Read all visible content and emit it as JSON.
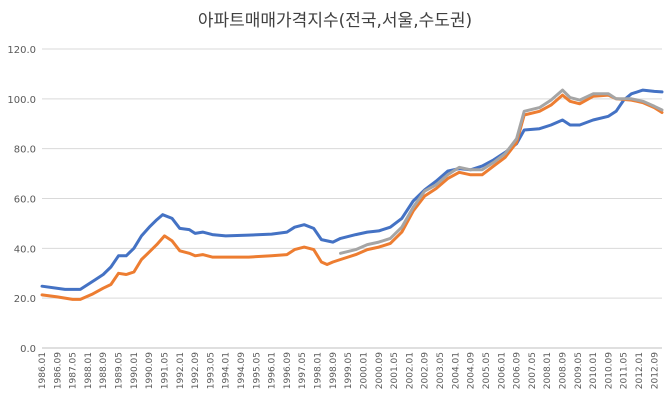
{
  "chart_data": {
    "type": "line",
    "title": "아파트매매가격지수(전국,서울,수도권)",
    "xlabel": "",
    "ylabel": "",
    "ylim": [
      0,
      120
    ],
    "yticks": [
      "0.0",
      "20.0",
      "40.0",
      "60.0",
      "80.0",
      "100.0",
      "120.0"
    ],
    "grid": "horizontal",
    "legend": "none",
    "x_ticks": [
      "1986.01",
      "1986.09",
      "1987.05",
      "1988.01",
      "1988.09",
      "1989.05",
      "1990.01",
      "1990.09",
      "1991.05",
      "1992.01",
      "1992.09",
      "1993.05",
      "1994.01",
      "1994.09",
      "1995.05",
      "1996.01",
      "1996.09",
      "1997.05",
      "1998.01",
      "1998.09",
      "1999.05",
      "2000.01",
      "2000.09",
      "2001.05",
      "2002.01",
      "2002.09",
      "2003.05",
      "2004.01",
      "2004.09",
      "2005.05",
      "2006.01",
      "2006.09",
      "2007.05",
      "2008.01",
      "2008.09",
      "2009.05",
      "2010.01",
      "2010.09",
      "2011.05",
      "2012.01",
      "2012.09"
    ],
    "x_start": "1986.01",
    "x_end": "2013.01",
    "series": [
      {
        "color": "#4472C4",
        "points": [
          [
            "1986.01",
            24.8
          ],
          [
            "1987.01",
            23.5
          ],
          [
            "1987.09",
            23.5
          ],
          [
            "1988.05",
            27.5
          ],
          [
            "1988.09",
            29.5
          ],
          [
            "1989.01",
            32.5
          ],
          [
            "1989.05",
            37.0
          ],
          [
            "1989.09",
            37.0
          ],
          [
            "1990.01",
            40.0
          ],
          [
            "1990.05",
            45.0
          ],
          [
            "1990.09",
            48.5
          ],
          [
            "1991.01",
            51.5
          ],
          [
            "1991.04",
            53.5
          ],
          [
            "1991.09",
            52.0
          ],
          [
            "1992.01",
            48.0
          ],
          [
            "1992.06",
            47.5
          ],
          [
            "1992.09",
            46.0
          ],
          [
            "1993.01",
            46.5
          ],
          [
            "1993.06",
            45.5
          ],
          [
            "1994.01",
            45.0
          ],
          [
            "1995.01",
            45.3
          ],
          [
            "1996.01",
            45.7
          ],
          [
            "1996.09",
            46.5
          ],
          [
            "1997.01",
            48.5
          ],
          [
            "1997.06",
            49.5
          ],
          [
            "1997.11",
            48.0
          ],
          [
            "1998.03",
            43.5
          ],
          [
            "1998.09",
            42.5
          ],
          [
            "1999.01",
            44.0
          ],
          [
            "1999.09",
            45.5
          ],
          [
            "2000.03",
            46.5
          ],
          [
            "2000.09",
            47.0
          ],
          [
            "2001.03",
            48.5
          ],
          [
            "2001.09",
            52.0
          ],
          [
            "2002.03",
            59.0
          ],
          [
            "2002.09",
            63.5
          ],
          [
            "2003.03",
            67.0
          ],
          [
            "2003.09",
            71.0
          ],
          [
            "2004.03",
            72.0
          ],
          [
            "2004.09",
            71.5
          ],
          [
            "2005.03",
            73.0
          ],
          [
            "2005.09",
            75.5
          ],
          [
            "2006.03",
            78.5
          ],
          [
            "2006.09",
            82.0
          ],
          [
            "2007.01",
            87.5
          ],
          [
            "2007.09",
            88.0
          ],
          [
            "2008.03",
            89.5
          ],
          [
            "2008.09",
            91.5
          ],
          [
            "2009.01",
            89.5
          ],
          [
            "2009.06",
            89.5
          ],
          [
            "2010.01",
            91.5
          ],
          [
            "2010.09",
            93.0
          ],
          [
            "2011.01",
            95.0
          ],
          [
            "2011.05",
            99.5
          ],
          [
            "2011.09",
            102.0
          ],
          [
            "2012.03",
            103.5
          ],
          [
            "2012.09",
            103.0
          ],
          [
            "2013.01",
            102.8
          ]
        ]
      },
      {
        "color": "#ED7D31",
        "points": [
          [
            "1986.01",
            21.3
          ],
          [
            "1986.09",
            20.5
          ],
          [
            "1987.05",
            19.5
          ],
          [
            "1987.09",
            19.5
          ],
          [
            "1988.03",
            21.5
          ],
          [
            "1988.09",
            24.0
          ],
          [
            "1989.01",
            25.5
          ],
          [
            "1989.05",
            30.0
          ],
          [
            "1989.09",
            29.5
          ],
          [
            "1990.01",
            30.5
          ],
          [
            "1990.05",
            35.5
          ],
          [
            "1990.09",
            38.5
          ],
          [
            "1991.01",
            41.5
          ],
          [
            "1991.05",
            45.0
          ],
          [
            "1991.09",
            43.0
          ],
          [
            "1992.01",
            39.0
          ],
          [
            "1992.06",
            38.0
          ],
          [
            "1992.09",
            37.0
          ],
          [
            "1993.01",
            37.5
          ],
          [
            "1993.06",
            36.5
          ],
          [
            "1994.01",
            36.5
          ],
          [
            "1995.01",
            36.5
          ],
          [
            "1996.01",
            37.0
          ],
          [
            "1996.09",
            37.5
          ],
          [
            "1997.01",
            39.5
          ],
          [
            "1997.06",
            40.5
          ],
          [
            "1997.11",
            39.5
          ],
          [
            "1998.03",
            34.5
          ],
          [
            "1998.06",
            33.5
          ],
          [
            "1998.09",
            34.5
          ],
          [
            "1999.01",
            35.5
          ],
          [
            "1999.09",
            37.5
          ],
          [
            "2000.03",
            39.5
          ],
          [
            "2000.09",
            40.5
          ],
          [
            "2001.03",
            42.0
          ],
          [
            "2001.09",
            46.5
          ],
          [
            "2002.03",
            55.0
          ],
          [
            "2002.09",
            61.0
          ],
          [
            "2003.03",
            64.0
          ],
          [
            "2003.09",
            68.0
          ],
          [
            "2004.03",
            70.5
          ],
          [
            "2004.09",
            69.5
          ],
          [
            "2005.03",
            69.5
          ],
          [
            "2005.09",
            73.0
          ],
          [
            "2006.03",
            76.5
          ],
          [
            "2006.09",
            82.5
          ],
          [
            "2007.01",
            93.5
          ],
          [
            "2007.09",
            95.0
          ],
          [
            "2008.03",
            97.5
          ],
          [
            "2008.09",
            101.5
          ],
          [
            "2009.01",
            99.0
          ],
          [
            "2009.06",
            98.0
          ],
          [
            "2010.01",
            101.0
          ],
          [
            "2010.09",
            101.5
          ],
          [
            "2011.01",
            100.0
          ],
          [
            "2011.09",
            99.5
          ],
          [
            "2012.03",
            98.5
          ],
          [
            "2012.09",
            96.5
          ],
          [
            "2013.01",
            94.5
          ]
        ]
      },
      {
        "color": "#A5A5A5",
        "points": [
          [
            "1999.01",
            38.0
          ],
          [
            "1999.09",
            39.5
          ],
          [
            "2000.03",
            41.5
          ],
          [
            "2000.09",
            42.5
          ],
          [
            "2001.03",
            44.0
          ],
          [
            "2001.09",
            48.5
          ],
          [
            "2002.03",
            56.5
          ],
          [
            "2002.09",
            63.0
          ],
          [
            "2003.03",
            65.5
          ],
          [
            "2003.09",
            69.5
          ],
          [
            "2004.03",
            72.5
          ],
          [
            "2004.09",
            71.5
          ],
          [
            "2005.03",
            71.5
          ],
          [
            "2005.09",
            74.5
          ],
          [
            "2006.03",
            78.0
          ],
          [
            "2006.09",
            84.0
          ],
          [
            "2007.01",
            95.0
          ],
          [
            "2007.09",
            96.5
          ],
          [
            "2008.03",
            99.5
          ],
          [
            "2008.09",
            103.5
          ],
          [
            "2009.01",
            100.5
          ],
          [
            "2009.06",
            99.5
          ],
          [
            "2010.01",
            102.0
          ],
          [
            "2010.09",
            102.0
          ],
          [
            "2011.01",
            100.0
          ],
          [
            "2011.09",
            100.0
          ],
          [
            "2012.03",
            99.0
          ],
          [
            "2012.09",
            97.0
          ],
          [
            "2013.01",
            95.5
          ]
        ]
      }
    ]
  }
}
